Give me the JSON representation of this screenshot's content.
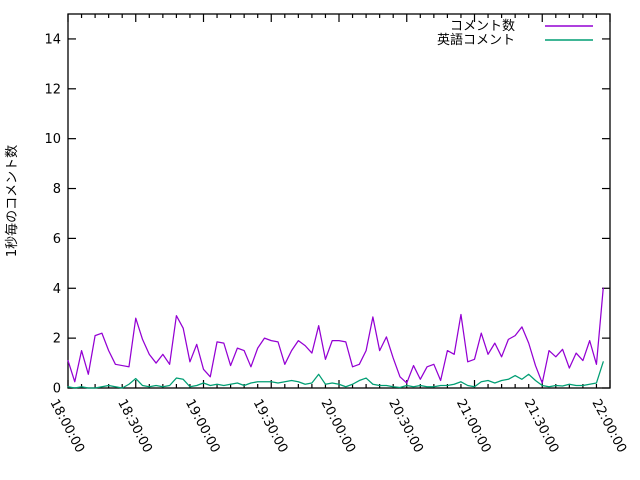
{
  "chart_data": {
    "type": "line",
    "title": "",
    "xlabel": "",
    "ylabel": "1秒毎のコメント数",
    "grid": false,
    "background_color": "#ffffff",
    "axis_color": "#000000",
    "legend_position": "top-right-inside",
    "y_axis": {
      "range": [
        0,
        15
      ],
      "ticks": [
        0,
        2,
        4,
        6,
        8,
        10,
        12,
        14
      ],
      "label": "1秒毎のコメント数"
    },
    "x_axis": {
      "tick_labels": [
        "18:00:00",
        "18:30:00",
        "19:00:00",
        "19:30:00",
        "20:00:00",
        "20:30:00",
        "21:00:00",
        "21:30:00",
        "22:00:00"
      ],
      "minor_ticks_per_interval": 4,
      "label_rotation_deg": 62
    },
    "x_times": [
      "18:00:00",
      "18:03:00",
      "18:06:00",
      "18:09:00",
      "18:12:00",
      "18:15:00",
      "18:18:00",
      "18:21:00",
      "18:24:00",
      "18:27:00",
      "18:30:00",
      "18:33:00",
      "18:36:00",
      "18:39:00",
      "18:42:00",
      "18:45:00",
      "18:48:00",
      "18:51:00",
      "18:54:00",
      "18:57:00",
      "19:00:00",
      "19:03:00",
      "19:06:00",
      "19:09:00",
      "19:12:00",
      "19:15:00",
      "19:18:00",
      "19:21:00",
      "19:24:00",
      "19:27:00",
      "19:30:00",
      "19:33:00",
      "19:36:00",
      "19:39:00",
      "19:42:00",
      "19:45:00",
      "19:48:00",
      "19:51:00",
      "19:54:00",
      "19:57:00",
      "20:00:00",
      "20:03:00",
      "20:06:00",
      "20:09:00",
      "20:12:00",
      "20:15:00",
      "20:18:00",
      "20:21:00",
      "20:24:00",
      "20:27:00",
      "20:30:00",
      "20:33:00",
      "20:36:00",
      "20:39:00",
      "20:42:00",
      "20:45:00",
      "20:48:00",
      "20:51:00",
      "20:54:00",
      "20:57:00",
      "21:00:00",
      "21:03:00",
      "21:06:00",
      "21:09:00",
      "21:12:00",
      "21:15:00",
      "21:18:00",
      "21:21:00",
      "21:24:00",
      "21:27:00",
      "21:30:00",
      "21:33:00",
      "21:36:00",
      "21:39:00",
      "21:42:00",
      "21:45:00",
      "21:48:00",
      "21:51:00",
      "21:54:00",
      "21:57:00"
    ],
    "series": [
      {
        "key": "comments",
        "name": "コメント数",
        "color": "#9400d3",
        "values": [
          1.1,
          0.25,
          1.5,
          0.55,
          2.1,
          2.2,
          1.5,
          0.95,
          0.9,
          0.85,
          2.8,
          1.95,
          1.35,
          1.0,
          1.35,
          0.95,
          2.9,
          2.4,
          1.05,
          1.75,
          0.75,
          0.45,
          1.85,
          1.8,
          0.9,
          1.6,
          1.5,
          0.85,
          1.6,
          2.0,
          1.9,
          1.85,
          0.95,
          1.5,
          1.9,
          1.7,
          1.4,
          2.5,
          1.15,
          1.9,
          1.9,
          1.85,
          0.85,
          0.95,
          1.5,
          2.85,
          1.5,
          2.05,
          1.2,
          0.45,
          0.2,
          0.9,
          0.35,
          0.85,
          0.95,
          0.3,
          1.5,
          1.35,
          2.95,
          1.05,
          1.15,
          2.2,
          1.35,
          1.8,
          1.25,
          1.95,
          2.1,
          2.45,
          1.8,
          0.9,
          0.2,
          1.5,
          1.25,
          1.55,
          0.8,
          1.4,
          1.1,
          1.9,
          0.95,
          4.0
        ]
      },
      {
        "key": "english-comments",
        "name": "英語コメント",
        "color": "#009e73",
        "values": [
          0.05,
          0,
          0.05,
          0,
          0,
          0.05,
          0.1,
          0.05,
          0,
          0.15,
          0.38,
          0.1,
          0.05,
          0.1,
          0.05,
          0.1,
          0.4,
          0.35,
          0.05,
          0.1,
          0.2,
          0.1,
          0.15,
          0.1,
          0.15,
          0.2,
          0.1,
          0.2,
          0.25,
          0.25,
          0.25,
          0.2,
          0.25,
          0.3,
          0.25,
          0.15,
          0.2,
          0.55,
          0.15,
          0.2,
          0.15,
          0.05,
          0.15,
          0.3,
          0.4,
          0.15,
          0.1,
          0.1,
          0.05,
          0.02,
          0.1,
          0.05,
          0.1,
          0.05,
          0.05,
          0.1,
          0.1,
          0.15,
          0.25,
          0.1,
          0.05,
          0.25,
          0.3,
          0.2,
          0.3,
          0.35,
          0.5,
          0.35,
          0.55,
          0.3,
          0.1,
          0.05,
          0.1,
          0.08,
          0.15,
          0.1,
          0.1,
          0.15,
          0.2,
          1.05
        ]
      }
    ]
  },
  "colors": {
    "background": "#ffffff",
    "axis": "#000000",
    "text": "#000000",
    "series_comments": "#9400d3",
    "series_english": "#009e73"
  }
}
